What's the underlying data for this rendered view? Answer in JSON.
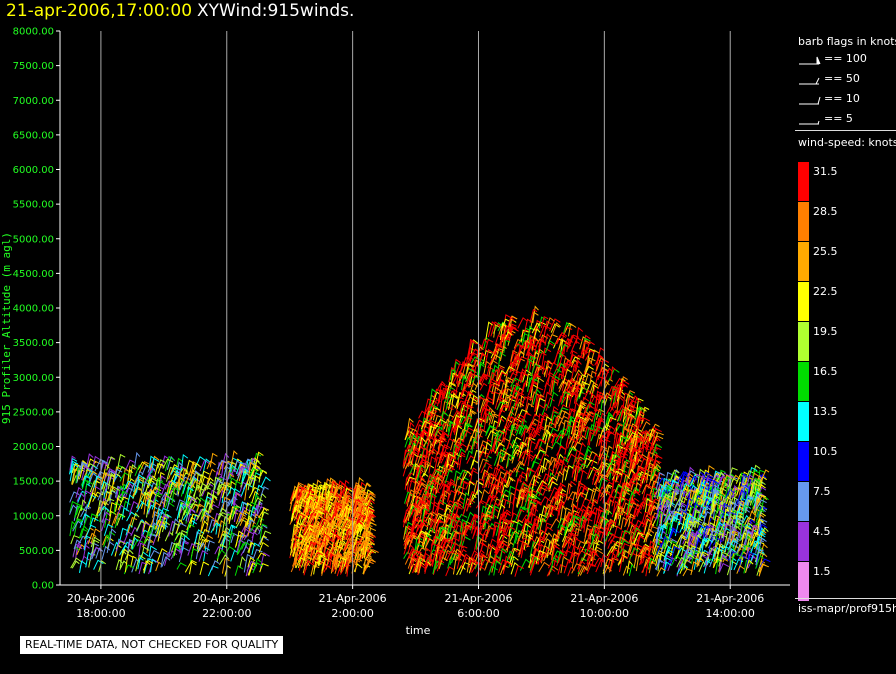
{
  "header": {
    "datetime": "21-apr-2006,17:00:00",
    "product": "XYWind:915winds."
  },
  "notice": "REAL-TIME DATA, NOT CHECKED FOR QUALITY",
  "legend": {
    "flags_title": "barb flags in knots",
    "flags": [
      {
        "label": "== 100",
        "icon": "barb-100-icon"
      },
      {
        "label": "== 50",
        "icon": "barb-50-icon"
      },
      {
        "label": "== 10",
        "icon": "barb-10-icon"
      },
      {
        "label": "== 5",
        "icon": "barb-5-icon"
      }
    ],
    "speed_title": "wind-speed: knots",
    "colorbar": [
      {
        "label": "31.5",
        "color": "#ff0000"
      },
      {
        "label": "28.5",
        "color": "#ff7f00"
      },
      {
        "label": "25.5",
        "color": "#ffaa00"
      },
      {
        "label": "22.5",
        "color": "#ffff00"
      },
      {
        "label": "19.5",
        "color": "#b0ff30"
      },
      {
        "label": "16.5",
        "color": "#00dd00"
      },
      {
        "label": "13.5",
        "color": "#00ffff"
      },
      {
        "label": "10.5",
        "color": "#0000ff"
      },
      {
        "label": "7.5",
        "color": "#6699ee"
      },
      {
        "label": "4.5",
        "color": "#9933dd"
      },
      {
        "label": "1.5",
        "color": "#ee88ee"
      }
    ],
    "source": "iss-mapr/prof915h"
  },
  "chart_data": {
    "type": "scatter",
    "mark": "wind barbs",
    "title": "21-apr-2006,17:00:00  XYWind:915winds.",
    "xlabel": "time",
    "ylabel": "915 Profiler Altitude (m agl)",
    "ylim": [
      0,
      8000
    ],
    "yticks": [
      "0.00",
      "500.00",
      "1000.00",
      "1500.00",
      "2000.00",
      "2500.00",
      "3000.00",
      "3500.00",
      "4000.00",
      "4500.00",
      "5000.00",
      "5500.00",
      "6000.00",
      "6500.00",
      "7000.00",
      "7500.00",
      "8000.00"
    ],
    "xlim_hours": [
      -1.3,
      21.9
    ],
    "xticks": [
      {
        "h": 0,
        "date": "20-Apr-2006",
        "time": "18:00:00"
      },
      {
        "h": 4,
        "date": "20-Apr-2006",
        "time": "22:00:00"
      },
      {
        "h": 8,
        "date": "21-Apr-2006",
        "time": "2:00:00"
      },
      {
        "h": 12,
        "date": "21-Apr-2006",
        "time": "6:00:00"
      },
      {
        "h": 16,
        "date": "21-Apr-2006",
        "time": "10:00:00"
      },
      {
        "h": 20,
        "date": "21-Apr-2006",
        "time": "14:00:00"
      }
    ],
    "grid": "vertical lines at x ticks",
    "groups": [
      {
        "t": [
          -1.0,
          5.1
        ],
        "top": 1700,
        "speeds": [
          "#9933dd",
          "#6699ee",
          "#00ffff",
          "#00dd00",
          "#b0ff30",
          "#ffff00",
          "#ffaa00"
        ]
      },
      {
        "t": [
          6.0,
          8.5
        ],
        "top": 1300,
        "speeds": [
          "#ff7f00",
          "#ffaa00",
          "#ffff00",
          "#ff0000"
        ]
      },
      {
        "t": [
          9.6,
          17.6
        ],
        "top": 3800,
        "speeds": [
          "#ff0000",
          "#ff0000",
          "#ff0000",
          "#ff0000",
          "#ff7f00",
          "#ffaa00",
          "#ffff00",
          "#00dd00"
        ]
      },
      {
        "t": [
          17.6,
          21.0
        ],
        "top": 1500,
        "speeds": [
          "#00ffff",
          "#0000ff",
          "#6699ee",
          "#00dd00",
          "#b0ff30",
          "#ffff00",
          "#ffaa00",
          "#9933dd"
        ]
      }
    ]
  }
}
